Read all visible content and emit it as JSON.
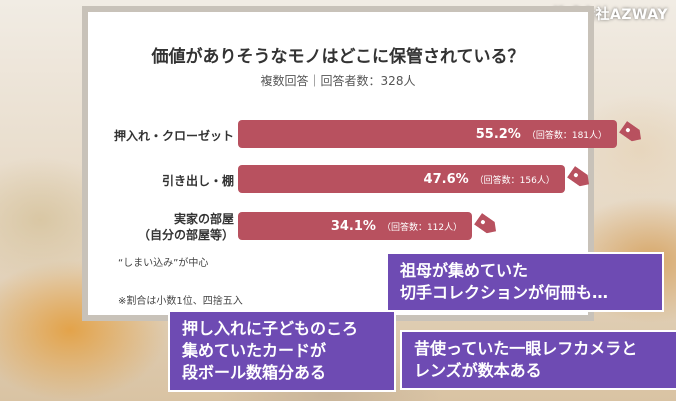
{
  "watermark": "株式会社AZWAY",
  "chart_data": {
    "type": "bar",
    "title": "価値がありそうなモノはどこに保管されている？",
    "subtitle": "複数回答｜回答者数：328人",
    "categories": [
      "押入れ・クローゼット",
      "引き出し・棚",
      "実家の部屋\n（自分の部屋等）"
    ],
    "values": [
      55.2,
      47.6,
      34.1
    ],
    "value_labels": [
      "55.2%",
      "47.6%",
      "34.1%"
    ],
    "count_labels": [
      "（回答数：181人）",
      "（回答数：156人）",
      "（回答数：112人）"
    ],
    "color": "#b8515f",
    "orientation": "horizontal",
    "xlim": [
      0,
      60
    ]
  },
  "notes": {
    "category_note": "“しまい込み”が中心",
    "rounding_note": "※割合は小数1位、四捨五入"
  },
  "bubbles": [
    "祖母が集めていた\n切手コレクションが何冊も…",
    "押し入れに子どものころ\n集めていたカードが\n段ボール数箱分ある",
    "昔使っていた一眼レフカメラと\nレンズが数本ある"
  ],
  "bubble_color": "#6e4bb3"
}
